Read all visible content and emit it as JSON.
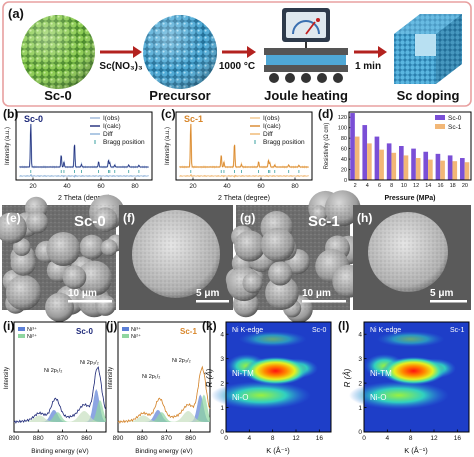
{
  "panel_a": {
    "label": "(a)",
    "sc0_label": "Sc-0",
    "reagent": "Sc(NO₃)₃",
    "precursor_label": "Precursor",
    "temperature": "1000 °C",
    "joule_label": "Joule heating",
    "time": "1 min",
    "product_label": "Sc doping",
    "colors": {
      "sc0": "#7cbc45",
      "precursor": "#3f9fcb",
      "border": "#e8a0a0",
      "arrow": "#b3221f"
    }
  },
  "panel_b": {
    "label": "(b)",
    "sample": "Sc-0",
    "legend": [
      "I(obs)",
      "I(calc)",
      "Diff",
      "Bragg position"
    ],
    "xlabel": "2 Theta (degree)",
    "ylabel": "Intensity (a.u.)",
    "xticks": [
      "20",
      "40",
      "60",
      "80"
    ],
    "colors": {
      "obs": "#9db7d9",
      "calc": "#1f2a7a",
      "diff": "#8fb2d8",
      "bragg": "#3aa0a0"
    }
  },
  "panel_c": {
    "label": "(c)",
    "sample": "Sc-1",
    "legend": [
      "I(obs)",
      "I(calc)",
      "Diff",
      "Bragg position"
    ],
    "xlabel": "2 Theta (degree)",
    "ylabel": "Intensity (a.u.)",
    "xticks": [
      "20",
      "40",
      "60",
      "80"
    ],
    "colors": {
      "obs": "#f3c68c",
      "calc": "#d8862a",
      "diff": "#f0b56e",
      "bragg": "#3aa0a0"
    }
  },
  "panel_d": {
    "label": "(d)",
    "chart_data": {
      "type": "bar",
      "categories": [
        "2",
        "4",
        "6",
        "8",
        "10",
        "12",
        "14",
        "16",
        "18",
        "20"
      ],
      "series": [
        {
          "name": "Sc-0",
          "values": [
            128,
            105,
            83,
            70,
            65,
            60,
            54,
            50,
            47,
            42
          ],
          "color": "#7a4fd6"
        },
        {
          "name": "Sc-1",
          "values": [
            83,
            70,
            58,
            52,
            47,
            42,
            39,
            37,
            36,
            34
          ],
          "color": "#f2b777"
        }
      ],
      "xlabel": "Pressure (MPa)",
      "ylabel": "Resistivity (Ω cm)",
      "ylim": [
        0,
        130
      ],
      "yticks": [
        "0",
        "20",
        "40",
        "60",
        "80",
        "100",
        "120"
      ],
      "legend_position": "top-right"
    }
  },
  "sem": {
    "e": {
      "label": "(e)",
      "sample": "Sc-0",
      "scale": "10 μm"
    },
    "f": {
      "label": "(f)",
      "scale": "5 μm"
    },
    "g": {
      "label": "(g)",
      "sample": "Sc-1",
      "scale": "10 μm"
    },
    "h": {
      "label": "(h)",
      "scale": "5 μm"
    }
  },
  "xps": {
    "i": {
      "label": "(i)",
      "sample": "Sc-0",
      "legend": [
        "Ni³⁺",
        "Ni²⁺"
      ],
      "peak1": "Ni 2p₁/₂",
      "peak2": "Ni 2p₃/₂",
      "sample_color": "#1f2a7a"
    },
    "j": {
      "label": "(j)",
      "sample": "Sc-1",
      "legend": [
        "Ni³⁺",
        "Ni²⁺"
      ],
      "peak1": "Ni 2p₁/₂",
      "peak2": "Ni 2p₃/₂",
      "sample_color": "#d8862a"
    },
    "xlabel": "Binding energy (eV)",
    "ylabel": "Intensity",
    "xticks": [
      "890",
      "880",
      "870",
      "860"
    ],
    "colors": {
      "ni3": "#5b7fd6",
      "ni2": "#8fd6a0"
    }
  },
  "wavelet": {
    "k": {
      "label": "(k)",
      "edge": "Ni K-edge",
      "sample": "Sc-0"
    },
    "l": {
      "label": "(l)",
      "edge": "Ni K-edge",
      "sample": "Sc-1"
    },
    "ni_tm": "Ni-TM",
    "ni_o": "Ni-O",
    "xlabel": "K (Å⁻¹)",
    "ylabel": "R (Å)",
    "xticks": [
      "0",
      "4",
      "8",
      "12",
      "16"
    ],
    "yticks": [
      "0",
      "1",
      "2",
      "3",
      "4"
    ]
  }
}
